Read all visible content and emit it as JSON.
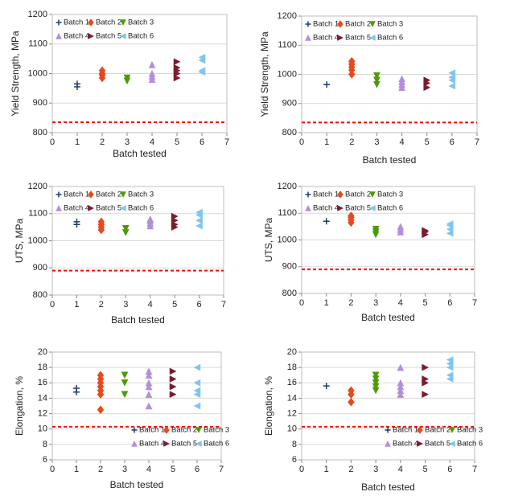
{
  "chart_data": [
    {
      "type": "scatter",
      "ylabel": "Yield Strength, MPa",
      "xlabel": "Batch tested",
      "xlim": [
        0,
        7
      ],
      "xticks": [
        0,
        1,
        2,
        3,
        4,
        5,
        6,
        7
      ],
      "ylim": [
        800,
        1200
      ],
      "yticks": [
        800,
        900,
        1000,
        1100,
        1200
      ],
      "grid": true,
      "legend": "top-left",
      "reference_line": {
        "value": 835,
        "color": "#ff0000"
      },
      "series": [
        {
          "name": "Batch 1",
          "color": "#1f3b73",
          "marker": "plus",
          "x": [
            1,
            1
          ],
          "y": [
            955,
            965
          ]
        },
        {
          "name": "Batch 2",
          "color": "#e8491d",
          "marker": "diamond",
          "x": [
            2,
            2,
            2,
            2
          ],
          "y": [
            985,
            995,
            1000,
            1010
          ]
        },
        {
          "name": "Batch 3",
          "color": "#4e9a06",
          "marker": "triangle-down",
          "x": [
            3,
            3
          ],
          "y": [
            975,
            985
          ]
        },
        {
          "name": "Batch 4",
          "color": "#b38fd9",
          "marker": "triangle-up",
          "x": [
            4,
            4,
            4,
            4
          ],
          "y": [
            980,
            990,
            1000,
            1030
          ]
        },
        {
          "name": "Batch 5",
          "color": "#7b1c2e",
          "marker": "triangle-right",
          "x": [
            5,
            5,
            5,
            5,
            5
          ],
          "y": [
            985,
            1000,
            1010,
            1020,
            1040
          ]
        },
        {
          "name": "Batch 6",
          "color": "#7fc6ef",
          "marker": "triangle-left",
          "x": [
            6,
            6,
            6,
            6
          ],
          "y": [
            1005,
            1010,
            1045,
            1055
          ]
        }
      ]
    },
    {
      "type": "scatter",
      "ylabel": "Yield Strength, MPa",
      "xlabel": "Batch tested",
      "xlim": [
        0,
        7
      ],
      "xticks": [
        0,
        1,
        2,
        3,
        4,
        5,
        6,
        7
      ],
      "ylim": [
        800,
        1200
      ],
      "yticks": [
        800,
        900,
        1000,
        1100,
        1200
      ],
      "grid": true,
      "legend": "top-left",
      "reference_line": {
        "value": 835,
        "color": "#ff0000"
      },
      "series": [
        {
          "name": "Batch 1",
          "color": "#1f3b73",
          "marker": "plus",
          "x": [
            1
          ],
          "y": [
            965
          ]
        },
        {
          "name": "Batch 2",
          "color": "#e8491d",
          "marker": "diamond",
          "x": [
            2,
            2,
            2,
            2,
            2
          ],
          "y": [
            1000,
            1015,
            1025,
            1035,
            1045
          ]
        },
        {
          "name": "Batch 3",
          "color": "#4e9a06",
          "marker": "triangle-down",
          "x": [
            3,
            3,
            3
          ],
          "y": [
            965,
            980,
            995
          ]
        },
        {
          "name": "Batch 4",
          "color": "#b38fd9",
          "marker": "triangle-up",
          "x": [
            4,
            4,
            4,
            4
          ],
          "y": [
            955,
            965,
            975,
            985
          ]
        },
        {
          "name": "Batch 5",
          "color": "#7b1c2e",
          "marker": "triangle-right",
          "x": [
            5,
            5,
            5
          ],
          "y": [
            955,
            970,
            980
          ]
        },
        {
          "name": "Batch 6",
          "color": "#7fc6ef",
          "marker": "triangle-left",
          "x": [
            6,
            6,
            6,
            6
          ],
          "y": [
            960,
            980,
            990,
            1005
          ]
        }
      ]
    },
    {
      "type": "scatter",
      "ylabel": "UTS, MPa",
      "xlabel": "Batch tested",
      "xlim": [
        0,
        7
      ],
      "xticks": [
        0,
        1,
        2,
        3,
        4,
        5,
        6,
        7
      ],
      "ylim": [
        800,
        1200
      ],
      "yticks": [
        800,
        900,
        1000,
        1100,
        1200
      ],
      "grid": true,
      "legend": "top-left",
      "reference_line": {
        "value": 890,
        "color": "#ff0000"
      },
      "series": [
        {
          "name": "Batch 1",
          "color": "#1f3b73",
          "marker": "plus",
          "x": [
            1,
            1
          ],
          "y": [
            1060,
            1070
          ]
        },
        {
          "name": "Batch 2",
          "color": "#e8491d",
          "marker": "diamond",
          "x": [
            2,
            2,
            2,
            2
          ],
          "y": [
            1040,
            1050,
            1060,
            1070
          ]
        },
        {
          "name": "Batch 3",
          "color": "#4e9a06",
          "marker": "triangle-down",
          "x": [
            3,
            3
          ],
          "y": [
            1030,
            1045
          ]
        },
        {
          "name": "Batch 4",
          "color": "#b38fd9",
          "marker": "triangle-up",
          "x": [
            4,
            4,
            4,
            4
          ],
          "y": [
            1055,
            1065,
            1075,
            1080
          ]
        },
        {
          "name": "Batch 5",
          "color": "#7b1c2e",
          "marker": "triangle-right",
          "x": [
            5,
            5,
            5,
            5
          ],
          "y": [
            1050,
            1060,
            1075,
            1090
          ]
        },
        {
          "name": "Batch 6",
          "color": "#7fc6ef",
          "marker": "triangle-left",
          "x": [
            6,
            6,
            6,
            6
          ],
          "y": [
            1055,
            1075,
            1095,
            1105
          ]
        }
      ]
    },
    {
      "type": "scatter",
      "ylabel": "UTS, MPa",
      "xlabel": "Batch tested",
      "xlim": [
        0,
        7
      ],
      "xticks": [
        0,
        1,
        2,
        3,
        4,
        5,
        6,
        7
      ],
      "ylim": [
        800,
        1200
      ],
      "yticks": [
        800,
        900,
        1000,
        1100,
        1200
      ],
      "grid": true,
      "legend": "top-left",
      "reference_line": {
        "value": 890,
        "color": "#ff0000"
      },
      "series": [
        {
          "name": "Batch 1",
          "color": "#1f3b73",
          "marker": "plus",
          "x": [
            1
          ],
          "y": [
            1070
          ]
        },
        {
          "name": "Batch 2",
          "color": "#e8491d",
          "marker": "diamond",
          "x": [
            2,
            2,
            2,
            2
          ],
          "y": [
            1065,
            1075,
            1085,
            1090
          ]
        },
        {
          "name": "Batch 3",
          "color": "#4e9a06",
          "marker": "triangle-down",
          "x": [
            3,
            3,
            3
          ],
          "y": [
            1020,
            1030,
            1040
          ]
        },
        {
          "name": "Batch 4",
          "color": "#b38fd9",
          "marker": "triangle-up",
          "x": [
            4,
            4,
            4
          ],
          "y": [
            1030,
            1040,
            1050
          ]
        },
        {
          "name": "Batch 5",
          "color": "#7b1c2e",
          "marker": "triangle-right",
          "x": [
            5,
            5,
            5
          ],
          "y": [
            1020,
            1030,
            1035
          ]
        },
        {
          "name": "Batch 6",
          "color": "#7fc6ef",
          "marker": "triangle-left",
          "x": [
            6,
            6,
            6,
            6
          ],
          "y": [
            1025,
            1040,
            1055,
            1060
          ]
        }
      ]
    },
    {
      "type": "scatter",
      "ylabel": "Elongation, %",
      "xlabel": "Batch tested",
      "xlim": [
        0,
        7
      ],
      "xticks": [
        0,
        1,
        2,
        3,
        4,
        5,
        6,
        7
      ],
      "ylim": [
        6,
        20
      ],
      "yticks": [
        6,
        8,
        10,
        12,
        14,
        16,
        18,
        20
      ],
      "grid": true,
      "legend": "bottom-right",
      "reference_line": {
        "value": 10.3,
        "color": "#ff0000"
      },
      "series": [
        {
          "name": "Batch 1",
          "color": "#1f3b73",
          "marker": "plus",
          "x": [
            1,
            1
          ],
          "y": [
            14.8,
            15.3
          ]
        },
        {
          "name": "Batch 2",
          "color": "#e8491d",
          "marker": "diamond",
          "x": [
            2,
            2,
            2,
            2,
            2,
            2,
            2
          ],
          "y": [
            12.5,
            14.5,
            15.0,
            15.5,
            16.0,
            16.5,
            17.0
          ]
        },
        {
          "name": "Batch 3",
          "color": "#4e9a06",
          "marker": "triangle-down",
          "x": [
            3,
            3,
            3
          ],
          "y": [
            14.5,
            16.0,
            17.0
          ]
        },
        {
          "name": "Batch 4",
          "color": "#b38fd9",
          "marker": "triangle-up",
          "x": [
            4,
            4,
            4,
            4,
            4,
            4
          ],
          "y": [
            13.0,
            14.5,
            15.5,
            16.0,
            17.0,
            17.5
          ]
        },
        {
          "name": "Batch 5",
          "color": "#7b1c2e",
          "marker": "triangle-right",
          "x": [
            5,
            5,
            5,
            5
          ],
          "y": [
            14.5,
            15.5,
            16.5,
            17.5
          ]
        },
        {
          "name": "Batch 6",
          "color": "#7fc6ef",
          "marker": "triangle-left",
          "x": [
            6,
            6,
            6,
            6,
            6
          ],
          "y": [
            13.0,
            14.5,
            15.0,
            16.0,
            18.0
          ]
        }
      ]
    },
    {
      "type": "scatter",
      "ylabel": "Elongation, %",
      "xlabel": "Batch tested",
      "xlim": [
        0,
        7
      ],
      "xticks": [
        0,
        1,
        2,
        3,
        4,
        5,
        6,
        7
      ],
      "ylim": [
        6,
        20
      ],
      "yticks": [
        6,
        8,
        10,
        12,
        14,
        16,
        18,
        20
      ],
      "grid": true,
      "legend": "bottom-right",
      "reference_line": {
        "value": 10.3,
        "color": "#ff0000"
      },
      "series": [
        {
          "name": "Batch 1",
          "color": "#1f3b73",
          "marker": "plus",
          "x": [
            1
          ],
          "y": [
            15.6
          ]
        },
        {
          "name": "Batch 2",
          "color": "#e8491d",
          "marker": "diamond",
          "x": [
            2,
            2,
            2
          ],
          "y": [
            13.5,
            14.5,
            15.0
          ]
        },
        {
          "name": "Batch 3",
          "color": "#4e9a06",
          "marker": "triangle-down",
          "x": [
            3,
            3,
            3,
            3,
            3
          ],
          "y": [
            15.0,
            15.5,
            16.0,
            16.5,
            17.0
          ]
        },
        {
          "name": "Batch 4",
          "color": "#b38fd9",
          "marker": "triangle-up",
          "x": [
            4,
            4,
            4,
            4,
            4
          ],
          "y": [
            14.5,
            15.0,
            15.5,
            16.0,
            18.0
          ]
        },
        {
          "name": "Batch 5",
          "color": "#7b1c2e",
          "marker": "triangle-right",
          "x": [
            5,
            5,
            5,
            5
          ],
          "y": [
            14.5,
            16.0,
            16.5,
            18.0
          ]
        },
        {
          "name": "Batch 6",
          "color": "#7fc6ef",
          "marker": "triangle-left",
          "x": [
            6,
            6,
            6,
            6,
            6
          ],
          "y": [
            16.5,
            17.0,
            18.0,
            18.5,
            19.0
          ]
        }
      ]
    }
  ]
}
